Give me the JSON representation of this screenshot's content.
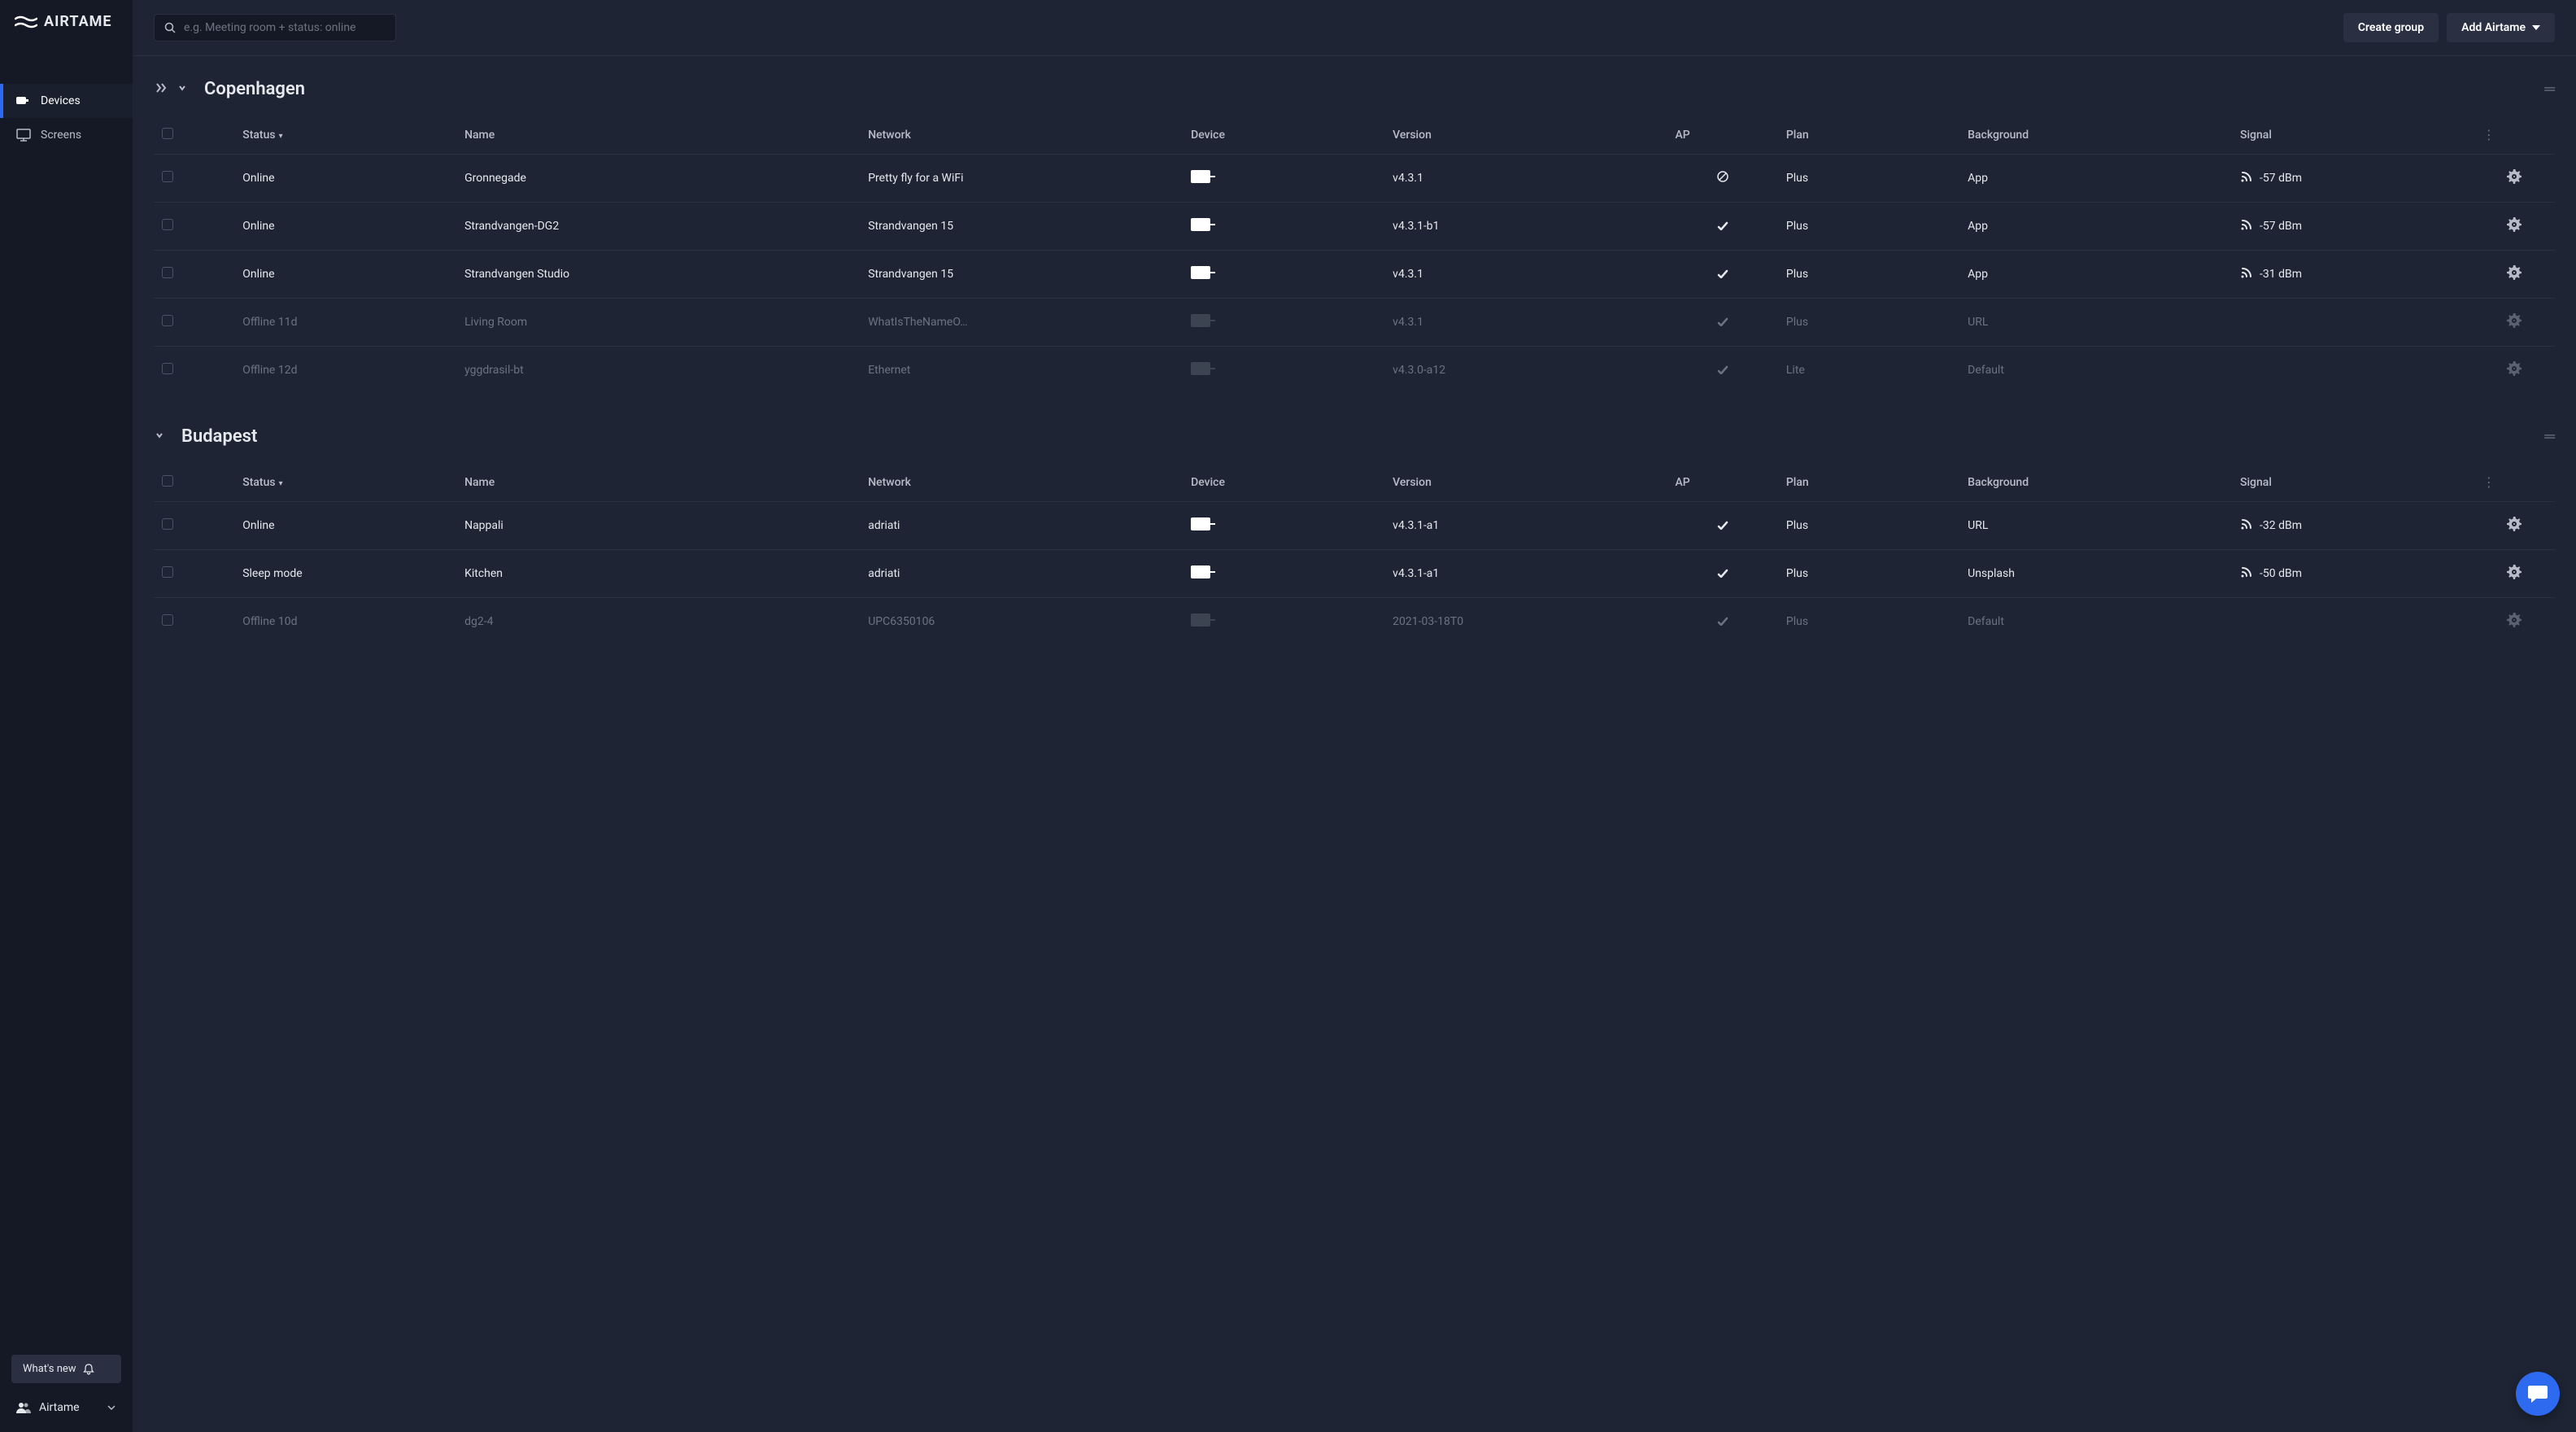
{
  "brand": "AIRTAME",
  "search": {
    "placeholder": "e.g. Meeting room + status: online"
  },
  "nav": {
    "devices": "Devices",
    "screens": "Screens"
  },
  "footer": {
    "whats_new": "What's new",
    "org": "Airtame"
  },
  "buttons": {
    "create_group": "Create group",
    "add_airtame": "Add Airtame"
  },
  "columns": {
    "status": "Status",
    "name": "Name",
    "network": "Network",
    "device": "Device",
    "version": "Version",
    "ap": "AP",
    "plan": "Plan",
    "background": "Background",
    "signal": "Signal"
  },
  "groups": [
    {
      "title": "Copenhagen",
      "show_collapse_all": true,
      "rows": [
        {
          "offline": false,
          "status": "Online",
          "name": "Gronnegade",
          "network": "Pretty fly for a WiFi",
          "version": "v4.3.1",
          "ap": "disabled",
          "plan": "Plus",
          "bg": "App",
          "signal": "-57 dBm"
        },
        {
          "offline": false,
          "status": "Online",
          "name": "Strandvangen-DG2",
          "network": "Strandvangen 15",
          "version": "v4.3.1-b1",
          "ap": "enabled",
          "plan": "Plus",
          "bg": "App",
          "signal": "-57 dBm"
        },
        {
          "offline": false,
          "status": "Online",
          "name": "Strandvangen Studio",
          "network": "Strandvangen 15",
          "version": "v4.3.1",
          "ap": "enabled",
          "plan": "Plus",
          "bg": "App",
          "signal": "-31 dBm"
        },
        {
          "offline": true,
          "status": "Offline 11d",
          "name": "Living Room",
          "network": "WhatIsTheNameO…",
          "version": "v4.3.1",
          "ap": "enabled",
          "plan": "Plus",
          "bg": "URL",
          "signal": ""
        },
        {
          "offline": true,
          "status": "Offline 12d",
          "name": "yggdrasil-bt",
          "network": "Ethernet",
          "version": "v4.3.0-a12",
          "ap": "enabled",
          "plan": "Lite",
          "bg": "Default",
          "signal": ""
        }
      ]
    },
    {
      "title": "Budapest",
      "show_collapse_all": false,
      "rows": [
        {
          "offline": false,
          "status": "Online",
          "name": "Nappali",
          "network": "adriati",
          "version": "v4.3.1-a1",
          "ap": "enabled",
          "plan": "Plus",
          "bg": "URL",
          "signal": "-32 dBm"
        },
        {
          "offline": false,
          "status": "Sleep mode",
          "name": "Kitchen",
          "network": "adriati",
          "version": "v4.3.1-a1",
          "ap": "enabled",
          "plan": "Plus",
          "bg": "Unsplash",
          "signal": "-50 dBm"
        },
        {
          "offline": true,
          "status": "Offline 10d",
          "name": "dg2-4",
          "network": "UPC6350106",
          "version": "2021-03-18T0",
          "ap": "enabled",
          "plan": "Plus",
          "bg": "Default",
          "signal": ""
        }
      ]
    }
  ],
  "colors": {
    "accent": "#2e6af0",
    "bg_app": "#1e2433",
    "bg_side": "#151926",
    "bg_row_border": "#2a3042",
    "text_muted": "#6b7280",
    "text_normal": "#e6e8ed"
  }
}
